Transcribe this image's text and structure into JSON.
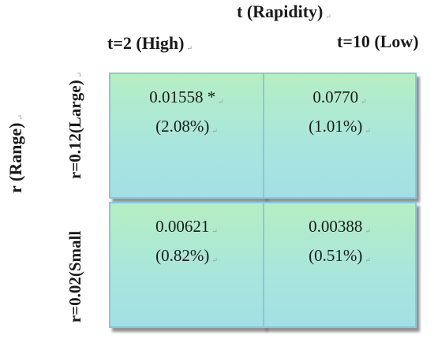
{
  "header": {
    "main_label": "t (Rapidity)",
    "col1_label": "t=2 (High)",
    "col2_label": "t=10 (Low)"
  },
  "side": {
    "main_label": "r (Range)",
    "row1_label": "r=0.12(Large)",
    "row2_label": "r=0.02(Small"
  },
  "cells": {
    "r1c1": {
      "value": "0.01558 *",
      "percent": "(2.08%)"
    },
    "r1c2": {
      "value": "0.0770",
      "percent": "(1.01%)"
    },
    "r2c1": {
      "value": "0.00621",
      "percent": "(0.82%)"
    },
    "r2c2": {
      "value": "0.00388",
      "percent": "(0.51%)"
    }
  },
  "paragraph_mark": "↵",
  "colors": {
    "cell_top": "#b5eec3",
    "cell_bottom": "#a3dfe6",
    "cell_border": "#8ec6d6"
  }
}
